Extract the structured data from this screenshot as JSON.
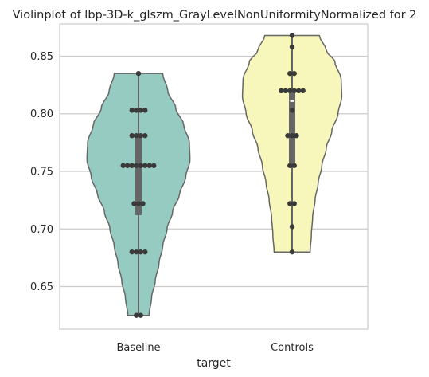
{
  "chart_data": {
    "type": "violin",
    "title": "Violinplot of lbp-3D-k_glszm_GrayLevelNonUniformityNormalized for 2",
    "xlabel": "target",
    "ylabel": "",
    "categories": [
      "Baseline",
      "Controls"
    ],
    "ylim": [
      0.613,
      0.878
    ],
    "yticks": [
      0.65,
      0.7,
      0.75,
      0.8,
      0.85
    ],
    "ytick_labels": [
      "0.65",
      "0.70",
      "0.75",
      "0.80",
      "0.85"
    ],
    "grid": "horizontal",
    "colors": {
      "Baseline": "#96cbc1",
      "Controls": "#f7f7bb",
      "outline": "#666666",
      "point": "#3a3a3a",
      "grid": "#cccccc"
    },
    "violins": [
      {
        "category": "Baseline",
        "min": 0.625,
        "max": 0.835,
        "q1": 0.712,
        "median": 0.755,
        "q3": 0.781,
        "profile": [
          [
            0.625,
            0.17
          ],
          [
            0.64,
            0.21
          ],
          [
            0.655,
            0.27
          ],
          [
            0.67,
            0.33
          ],
          [
            0.685,
            0.39
          ],
          [
            0.7,
            0.46
          ],
          [
            0.715,
            0.55
          ],
          [
            0.73,
            0.66
          ],
          [
            0.745,
            0.76
          ],
          [
            0.76,
            0.83
          ],
          [
            0.775,
            0.82
          ],
          [
            0.79,
            0.73
          ],
          [
            0.805,
            0.6
          ],
          [
            0.82,
            0.47
          ],
          [
            0.835,
            0.39
          ]
        ],
        "points": [
          0.835,
          0.803,
          0.803,
          0.803,
          0.803,
          0.781,
          0.781,
          0.781,
          0.781,
          0.755,
          0.755,
          0.755,
          0.755,
          0.755,
          0.755,
          0.755,
          0.755,
          0.722,
          0.722,
          0.722,
          0.68,
          0.68,
          0.68,
          0.68,
          0.625,
          0.625
        ]
      },
      {
        "category": "Controls",
        "min": 0.68,
        "max": 0.868,
        "q1": 0.757,
        "median": 0.811,
        "q3": 0.82,
        "profile": [
          [
            0.68,
            0.29
          ],
          [
            0.695,
            0.31
          ],
          [
            0.71,
            0.33
          ],
          [
            0.725,
            0.37
          ],
          [
            0.74,
            0.42
          ],
          [
            0.755,
            0.48
          ],
          [
            0.77,
            0.55
          ],
          [
            0.785,
            0.64
          ],
          [
            0.8,
            0.74
          ],
          [
            0.815,
            0.8
          ],
          [
            0.83,
            0.79
          ],
          [
            0.845,
            0.69
          ],
          [
            0.855,
            0.55
          ],
          [
            0.868,
            0.44
          ]
        ],
        "points": [
          0.868,
          0.858,
          0.835,
          0.835,
          0.82,
          0.82,
          0.82,
          0.82,
          0.82,
          0.82,
          0.803,
          0.781,
          0.781,
          0.781,
          0.755,
          0.755,
          0.722,
          0.722,
          0.702,
          0.68
        ]
      }
    ]
  }
}
